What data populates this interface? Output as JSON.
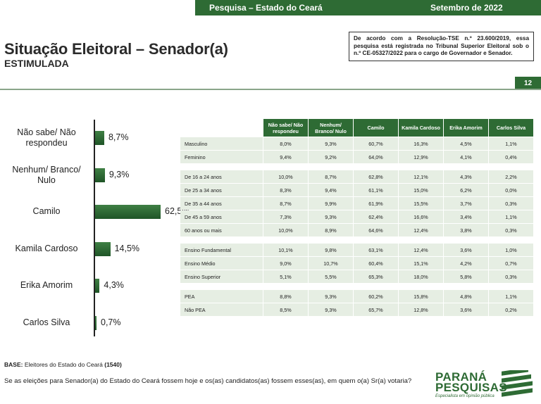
{
  "header": {
    "survey": "Pesquisa – Estado do Ceará",
    "date": "Setembro de 2022"
  },
  "title": "Situação Eleitoral – Senador(a)",
  "subtitle": "ESTIMULADA",
  "notice": "De acordo com a Resolução-TSE n.º 23.600/2019, essa pesquisa está registrada no Tribunal Superior Eleitoral sob o n.º CE-05327/2022 para o cargo de Governador e Senador.",
  "page_number": "12",
  "chart_data": [
    {
      "type": "bar",
      "orientation": "horizontal",
      "categories": [
        "Não sabe/ Não respondeu",
        "Nenhum/ Branco/ Nulo",
        "Camilo",
        "Kamila Cardoso",
        "Erika Amorim",
        "Carlos Silva"
      ],
      "values": [
        8.7,
        9.3,
        62.5,
        14.5,
        4.3,
        0.7
      ],
      "value_labels": [
        "8,7%",
        "9,3%",
        "62,5%",
        "14,5%",
        "4,3%",
        "0,7%"
      ],
      "xlim": [
        0,
        100
      ],
      "color": "#2e6b34"
    },
    {
      "type": "table",
      "columns": [
        "Não sabe/ Não respondeu",
        "Nenhum/ Branco/ Nulo",
        "Camilo",
        "Kamila Cardoso",
        "Erika Amorim",
        "Carlos Silva"
      ],
      "groups": [
        [
          {
            "label": "Masculino",
            "values": [
              "8,0%",
              "9,3%",
              "60,7%",
              "16,3%",
              "4,5%",
              "1,1%"
            ]
          },
          {
            "label": "Feminino",
            "values": [
              "9,4%",
              "9,2%",
              "64,0%",
              "12,9%",
              "4,1%",
              "0,4%"
            ]
          }
        ],
        [
          {
            "label": "De 16 a 24 anos",
            "values": [
              "10,0%",
              "8,7%",
              "62,8%",
              "12,1%",
              "4,3%",
              "2,2%"
            ]
          },
          {
            "label": "De 25 a 34 anos",
            "values": [
              "8,3%",
              "9,4%",
              "61,1%",
              "15,0%",
              "6,2%",
              "0,0%"
            ]
          },
          {
            "label": "De 35 a 44 anos",
            "values": [
              "8,7%",
              "9,9%",
              "61,9%",
              "15,5%",
              "3,7%",
              "0,3%"
            ]
          },
          {
            "label": "De 45 a 59 anos",
            "values": [
              "7,3%",
              "9,3%",
              "62,4%",
              "16,6%",
              "3,4%",
              "1,1%"
            ]
          },
          {
            "label": "60 anos ou mais",
            "values": [
              "10,0%",
              "8,9%",
              "64,6%",
              "12,4%",
              "3,8%",
              "0,3%"
            ]
          }
        ],
        [
          {
            "label": "Ensino Fundamental",
            "values": [
              "10,1%",
              "9,8%",
              "63,1%",
              "12,4%",
              "3,6%",
              "1,0%"
            ]
          },
          {
            "label": "Ensino Médio",
            "values": [
              "9,0%",
              "10,7%",
              "60,4%",
              "15,1%",
              "4,2%",
              "0,7%"
            ]
          },
          {
            "label": "Ensino Superior",
            "values": [
              "5,1%",
              "5,5%",
              "65,3%",
              "18,0%",
              "5,8%",
              "0,3%"
            ]
          }
        ],
        [
          {
            "label": "PEA",
            "values": [
              "8,8%",
              "9,3%",
              "60,2%",
              "15,8%",
              "4,8%",
              "1,1%"
            ]
          },
          {
            "label": "Não PEA",
            "values": [
              "8,5%",
              "9,3%",
              "65,7%",
              "12,8%",
              "3,6%",
              "0,2%"
            ]
          }
        ]
      ]
    }
  ],
  "footer": {
    "base_label": "BASE:",
    "base_text": "Eleitores do Estado do Ceará",
    "base_count": "(1540)",
    "question": "Se as eleições para Senador(a) do Estado do Ceará fossem hoje e os(as) candidatos(as) fossem esses(as), em quem o(a) Sr(a) votaria?"
  },
  "logo": {
    "line1": "PARANÁ",
    "line2": "PESQUISAS",
    "tagline": "Especialista em opinião pública"
  }
}
